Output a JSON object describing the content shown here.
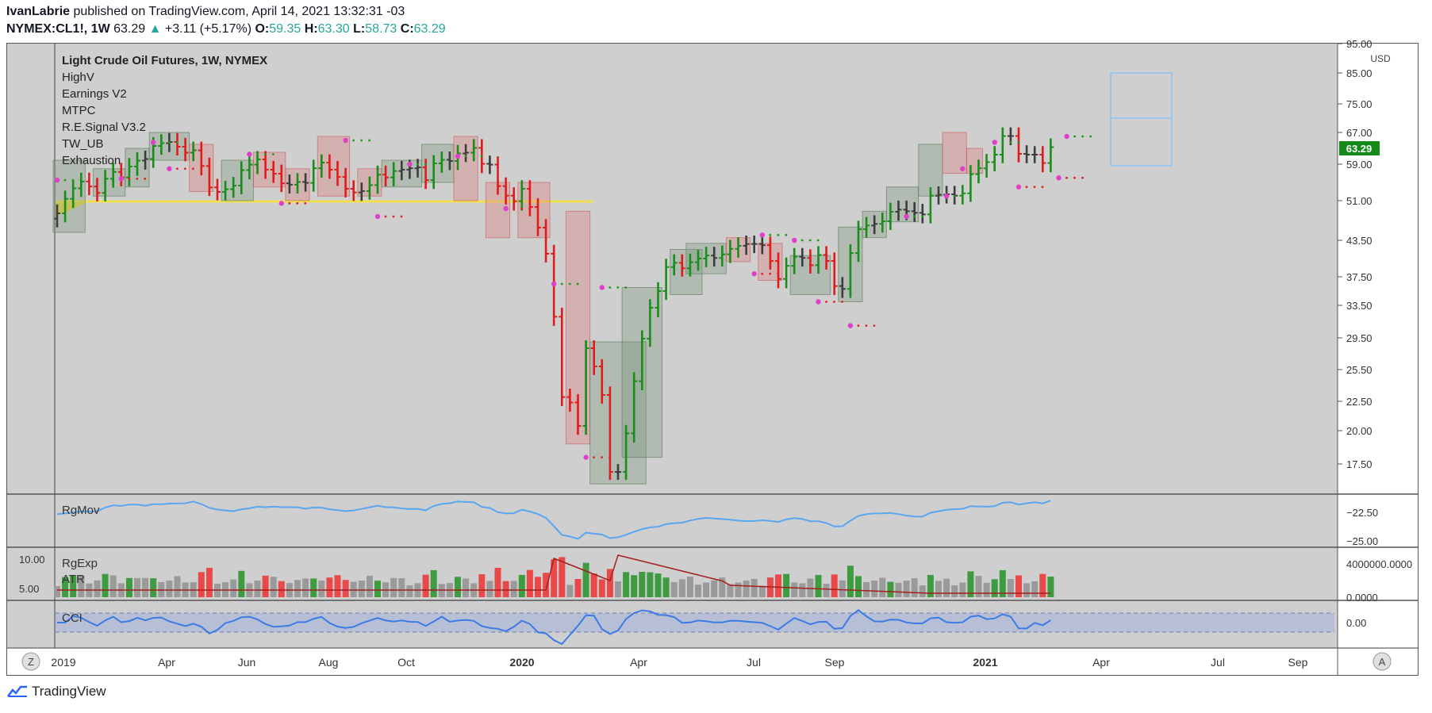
{
  "header": {
    "author": "IvanLabrie",
    "published_text": "published on TradingView.com, April 14, 2021 13:32:31 -03",
    "symbol": "NYMEX:CL1!, 1W",
    "last": "63.29",
    "change": "+3.11 (+5.17%)",
    "o_label": "O:",
    "o": "59.35",
    "h_label": "H:",
    "h": "63.30",
    "l_label": "L:",
    "l": "58.73",
    "c_label": "C:",
    "c": "63.29"
  },
  "legend": {
    "title": "Light Crude Oil Futures, 1W, NYMEX",
    "indicators": [
      "HighV",
      "Earnings V2",
      "MTPC",
      "R.E.Signal V3.2",
      "TW_UB",
      "Exhaustion"
    ]
  },
  "panes": {
    "rgmov": "RgMov",
    "rgexp": "RgExp",
    "atr": "ATR",
    "cci": "CCI"
  },
  "footer": {
    "brand": "TradingView"
  },
  "buttons": {
    "zoom": "Z",
    "auto": "A"
  },
  "colors": {
    "bull": "#1a8c1a",
    "bear": "#e01b1b",
    "neutral": "#3d3d3d",
    "price_badge": "#158a18",
    "cci_line": "#3b7be5",
    "rgmov_line": "#5aa7f0"
  },
  "chart_data": {
    "type": "bar",
    "title": "Light Crude Oil Futures, 1W, NYMEX",
    "currency": "USD",
    "last_price": "63.29",
    "price_axis_ticks": [
      "95.00",
      "85.00",
      "75.00",
      "67.00",
      "59.00",
      "51.00",
      "43.50",
      "37.50",
      "33.50",
      "29.50",
      "25.50",
      "22.50",
      "20.00",
      "17.50"
    ],
    "rgmov_ticks": [
      "-22.50",
      "-25.00"
    ],
    "rgexp_left_ticks": [
      "10.00",
      "5.00"
    ],
    "rgexp_right_ticks": [
      "4000000.0000",
      "0.0000"
    ],
    "cci_ticks": [
      "0.00"
    ],
    "x_ticks": [
      "2019",
      "Apr",
      "Jun",
      "Aug",
      "Oct",
      "2020",
      "Apr",
      "Jul",
      "Sep",
      "2021",
      "Apr",
      "Jul",
      "Sep"
    ],
    "x_tick_bold": [
      false,
      false,
      false,
      false,
      false,
      true,
      false,
      false,
      false,
      true,
      false,
      false,
      false
    ],
    "weekly_close": [
      48.6,
      51.4,
      53.7,
      55.2,
      54.1,
      52.7,
      55.8,
      57.3,
      56.1,
      58.5,
      59.9,
      60.3,
      63.6,
      64.3,
      64.6,
      63.4,
      61.9,
      62.5,
      58.6,
      53.9,
      52.9,
      53.5,
      54.3,
      57.7,
      58.9,
      60.2,
      57.8,
      56.9,
      54.8,
      54.5,
      55.1,
      54.9,
      58.1,
      59.4,
      57.8,
      56.2,
      53.6,
      52.8,
      53.1,
      54.4,
      56.7,
      56.1,
      57.5,
      57.8,
      58.1,
      58.3,
      55.5,
      59.2,
      60.1,
      59.8,
      61.7,
      61.9,
      63.1,
      59.1,
      58.9,
      54.2,
      52.1,
      50.9,
      53.6,
      49.8,
      45.9,
      41.3,
      32.1,
      22.9,
      22.4,
      20.4,
      28.2,
      25.9,
      23.1,
      16.9,
      16.9,
      19.8,
      24.4,
      29.4,
      33.2,
      35.5,
      39.1,
      39.8,
      38.9,
      39.9,
      40.5,
      41.0,
      40.6,
      41.2,
      42.1,
      42.6,
      42.9,
      42.9,
      42.7,
      40.1,
      37.2,
      39.3,
      40.8,
      40.6,
      39.4,
      41.1,
      40.1,
      36.2,
      35.8,
      41.4,
      45.6,
      46.3,
      46.6,
      47.1,
      48.9,
      49.3,
      49.0,
      48.7,
      48.4,
      52.1,
      52.3,
      52.4,
      52.1,
      52.6,
      56.8,
      58.1,
      59.5,
      61.4,
      66.1,
      66.1,
      61.6,
      61.4,
      61.4,
      59.3,
      63.3
    ],
    "series_note": "Weekly OHLC bars; colors green=bullish, red=bearish, dark=neutral"
  }
}
